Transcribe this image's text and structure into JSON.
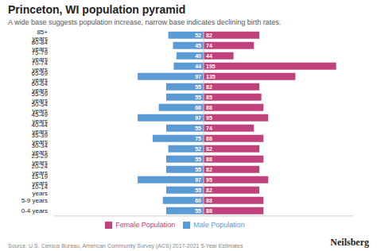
{
  "chart_data": {
    "type": "bar",
    "orientation": "horizontal",
    "title": "Princeton, WI population pyramid",
    "subtitle": "A wide base suggests population increase, narrow base indicates declining birth rates.",
    "annotations": [
      "Source: U.S. Census Bureau, American Community Survey (ACS) 2017-2021 5-Year Estimates",
      "Neilsberg"
    ],
    "categories": [
      "0-4 years",
      "5-9 years",
      "10-14 years",
      "15-19 years",
      "20-24 years",
      "25-29 years",
      "30-34 years",
      "35-39 years",
      "40-44 years",
      "45-49 years",
      "50-54 years",
      "55-59 years",
      "60-64 years",
      "65-69 years",
      "70-74 years",
      "75-79 years",
      "80-84 years",
      "85+ years"
    ],
    "series": [
      {
        "name": "Male Population",
        "color": "#5b9bd5",
        "values": [
          55,
          60,
          55,
          97,
          55,
          55,
          52,
          75,
          55,
          97,
          66,
          55,
          55,
          97,
          44,
          40,
          45,
          52
        ]
      },
      {
        "name": "Female Population",
        "color": "#c0417c",
        "values": [
          88,
          88,
          82,
          95,
          82,
          88,
          82,
          88,
          74,
          95,
          88,
          85,
          82,
          135,
          195,
          44,
          74,
          82
        ]
      }
    ],
    "xlim": [
      -220,
      220
    ],
    "data_labels": true,
    "tick_labels": "y",
    "legend": "bottom"
  }
}
